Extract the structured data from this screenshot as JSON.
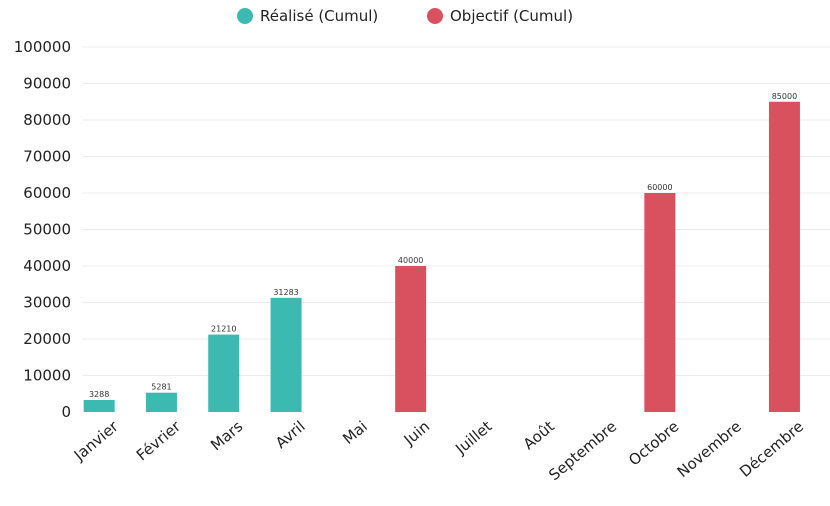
{
  "colors": {
    "realise": "#3cb9b0",
    "objectif": "#d9505f",
    "grid": "#ececec",
    "text": "#222222"
  },
  "legend": {
    "items": [
      {
        "label": "Réalisé (Cumul)",
        "color": "#3cb9b0"
      },
      {
        "label": "Objectif (Cumul)",
        "color": "#d9505f"
      }
    ]
  },
  "chart_data": {
    "type": "bar",
    "title": "",
    "xlabel": "",
    "ylabel": "",
    "ylim": [
      0,
      100000
    ],
    "yticks": [
      0,
      10000,
      20000,
      30000,
      40000,
      50000,
      60000,
      70000,
      80000,
      90000,
      100000
    ],
    "grid": true,
    "legend_position": "top-center",
    "categories": [
      "Janvier",
      "Février",
      "Mars",
      "Avril",
      "Mai",
      "Juin",
      "Juillet",
      "Août",
      "Septembre",
      "Octobre",
      "Novembre",
      "Décembre"
    ],
    "series": [
      {
        "name": "Réalisé (Cumul)",
        "color": "#3cb9b0",
        "values": [
          3288,
          5281,
          21210,
          31283,
          null,
          null,
          null,
          null,
          null,
          null,
          null,
          null
        ]
      },
      {
        "name": "Objectif (Cumul)",
        "color": "#d9505f",
        "values": [
          null,
          null,
          null,
          null,
          null,
          40000,
          null,
          null,
          null,
          60000,
          null,
          85000
        ]
      }
    ]
  }
}
